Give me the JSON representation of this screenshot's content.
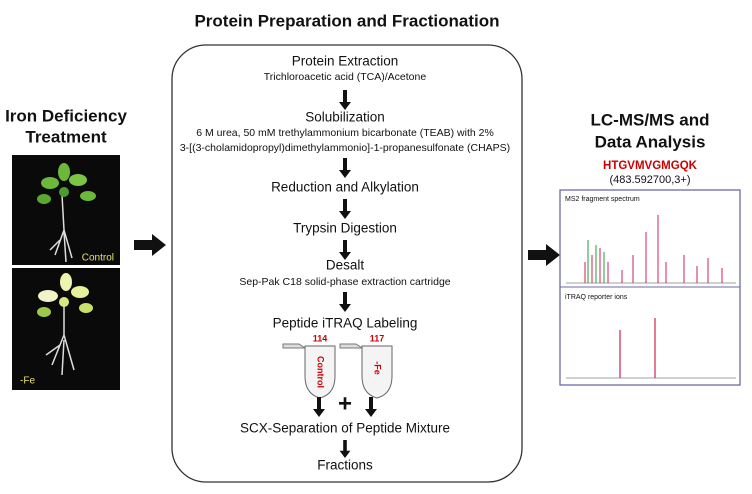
{
  "left": {
    "title_lines": [
      "Iron Deficiency",
      "Treatment"
    ],
    "photos": [
      {
        "label": "Control"
      },
      {
        "label": "-Fe"
      }
    ]
  },
  "center": {
    "title": "Protein Preparation and Fractionation",
    "steps": [
      {
        "title": "Protein  Extraction",
        "details": [
          "Trichloroacetic acid (TCA)/Acetone"
        ]
      },
      {
        "title": "Solubilization",
        "details": [
          "6 M urea, 50 mM trethylammonium bicarbonate (TEAB) with 2%",
          "3-[(3-cholamidopropyl)dimethylammonio]-1-propanesulfonate (CHAPS)"
        ]
      },
      {
        "title": "Reduction and Alkylation",
        "details": []
      },
      {
        "title": "Trypsin Digestion",
        "details": []
      },
      {
        "title": "Desalt",
        "details": [
          "Sep-Pak C18 solid-phase extraction cartridge"
        ]
      },
      {
        "title": "Peptide iTRAQ Labeling",
        "details": []
      },
      {
        "title": "SCX-Separation of Peptide Mixture",
        "details": []
      },
      {
        "title": "Fractions",
        "details": []
      }
    ],
    "tubes": [
      {
        "number": "114",
        "label": "Control"
      },
      {
        "number": "117",
        "label": "-Fe"
      }
    ],
    "plus": "+"
  },
  "right": {
    "title_lines": [
      "LC-MS/MS and",
      "Data Analysis"
    ],
    "peptide": "HTGVMVGMGQK",
    "precursor": "(483.592700,3+)",
    "panels": [
      "MS2 fragment spectrum",
      "iTRAQ reporter ions"
    ]
  }
}
